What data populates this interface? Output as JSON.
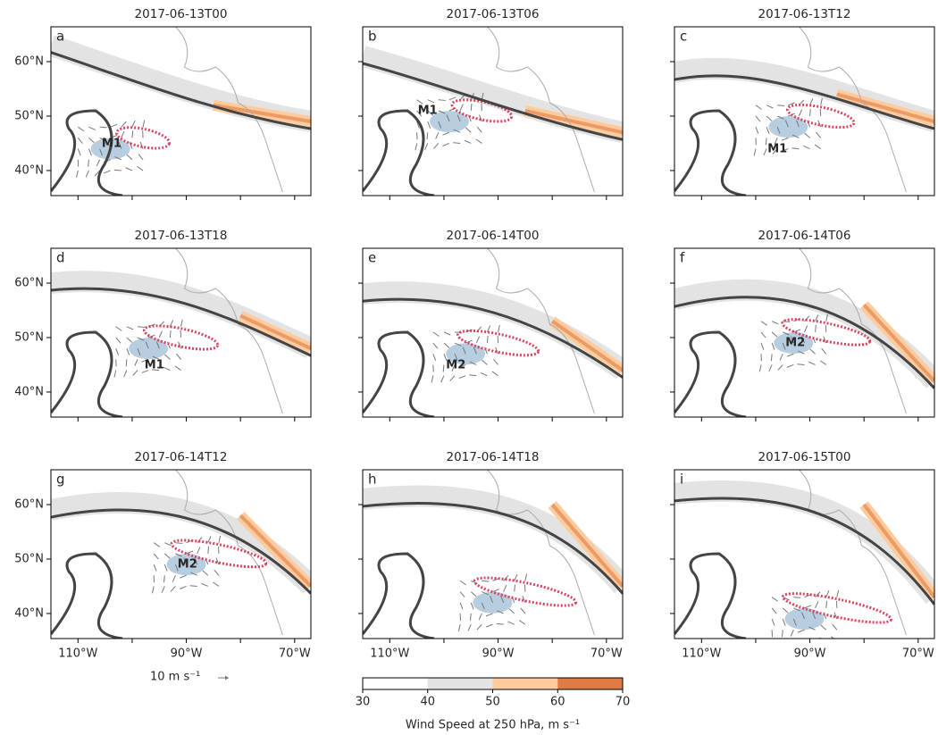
{
  "extent": {
    "lon": [
      -115,
      -67
    ],
    "lat": [
      35.4,
      66.4
    ]
  },
  "lat_ticks": [
    {
      "value": 40,
      "label": "40°N"
    },
    {
      "value": 50,
      "label": "50°N"
    },
    {
      "value": 60,
      "label": "60°N"
    }
  ],
  "lon_ticks": [
    {
      "value": -110,
      "label": "110°W"
    },
    {
      "value": -100,
      "label": null
    },
    {
      "value": -90,
      "label": "90°W"
    },
    {
      "value": -80,
      "label": null
    },
    {
      "value": -70,
      "label": "70°W"
    }
  ],
  "panels": [
    {
      "title": "2017-06-13T00",
      "letter": "a",
      "features": [
        {
          "label": "M1",
          "lon": -103.8,
          "lat": 44.9
        }
      ]
    },
    {
      "title": "2017-06-13T06",
      "letter": "b",
      "features": [
        {
          "label": "M1",
          "lon": -103,
          "lat": 51
        }
      ]
    },
    {
      "title": "2017-06-13T12",
      "letter": "c",
      "features": [
        {
          "label": "M1",
          "lon": -96,
          "lat": 43.9
        }
      ]
    },
    {
      "title": "2017-06-13T18",
      "letter": "d",
      "features": [
        {
          "label": "M1",
          "lon": -95.9,
          "lat": 44.9
        }
      ]
    },
    {
      "title": "2017-06-14T00",
      "letter": "e",
      "features": [
        {
          "label": "M2",
          "lon": -97.8,
          "lat": 44.9
        }
      ]
    },
    {
      "title": "2017-06-14T06",
      "letter": "f",
      "features": [
        {
          "label": "M2",
          "lon": -92.7,
          "lat": 49
        }
      ]
    },
    {
      "title": "2017-06-14T12",
      "letter": "g",
      "features": [
        {
          "label": "M2",
          "lon": -89.8,
          "lat": 49
        }
      ]
    },
    {
      "title": "2017-06-14T18",
      "letter": "h",
      "features": []
    },
    {
      "title": "2017-06-15T00",
      "letter": "i",
      "features": []
    }
  ],
  "wind_reference": "10 m s⁻¹",
  "colorbar": {
    "label": "Wind Speed at 250 hPa, m s⁻¹",
    "lim": [
      30,
      70
    ],
    "ticks": [
      30,
      40,
      50,
      60,
      70
    ],
    "bins": [
      30,
      40,
      50,
      60,
      70
    ],
    "colors": [
      "#ffffff",
      "#e3e3e3",
      "#fdcb9c",
      "#e07b45"
    ]
  }
}
